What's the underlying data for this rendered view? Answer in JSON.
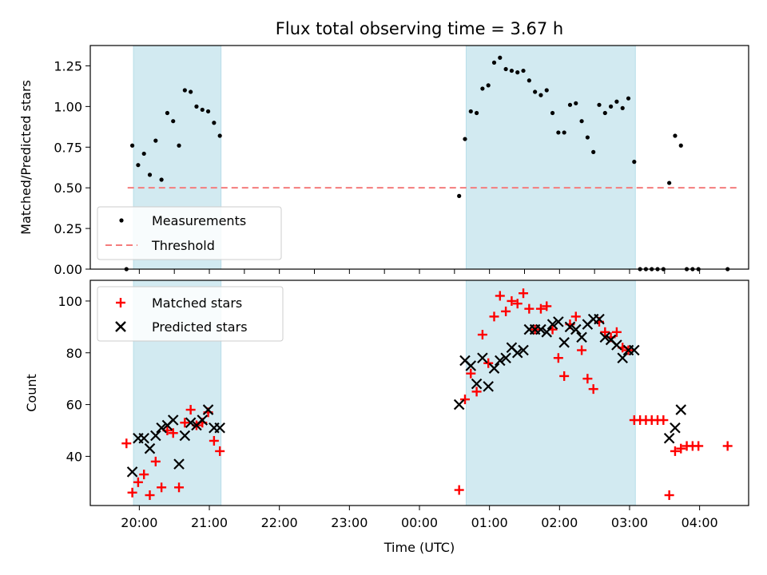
{
  "chart_data": [
    {
      "type": "scatter",
      "title": "Flux total observing time = 3.67 h",
      "ylabel": "Matched/Predicted stars",
      "xlabel": "",
      "ylim": [
        0,
        1.375
      ],
      "yticks": [
        "0.00",
        "0.25",
        "0.50",
        "0.75",
        "1.00",
        "1.25"
      ],
      "legend_position": "lower-left",
      "shaded_ranges": [
        [
          "19:55",
          "21:10"
        ],
        [
          "00:40",
          "03:05"
        ]
      ],
      "threshold": {
        "name": "Threshold",
        "value": 0.5,
        "x_range": [
          "19:50",
          "04:35"
        ],
        "color": "#f47c7c"
      },
      "series": [
        {
          "name": "Measurements",
          "color": "#000000",
          "x": [
            "19:49",
            "19:54",
            "19:59",
            "20:04",
            "20:09",
            "20:14",
            "20:19",
            "20:24",
            "20:29",
            "20:34",
            "20:39",
            "20:44",
            "20:49",
            "20:54",
            "20:59",
            "21:04",
            "21:09",
            "00:34",
            "00:39",
            "00:44",
            "00:49",
            "00:54",
            "00:59",
            "01:04",
            "01:09",
            "01:14",
            "01:19",
            "01:24",
            "01:29",
            "01:34",
            "01:39",
            "01:44",
            "01:49",
            "01:54",
            "01:59",
            "02:04",
            "02:09",
            "02:14",
            "02:19",
            "02:24",
            "02:29",
            "02:34",
            "02:39",
            "02:44",
            "02:49",
            "02:54",
            "02:59",
            "03:04",
            "03:09",
            "03:14",
            "03:19",
            "03:24",
            "03:29",
            "03:34",
            "03:39",
            "03:44",
            "03:49",
            "03:54",
            "03:59",
            "04:24"
          ],
          "y": [
            0.0,
            0.76,
            0.64,
            0.71,
            0.58,
            0.79,
            0.55,
            0.96,
            0.91,
            0.76,
            1.1,
            1.09,
            1.0,
            0.98,
            0.97,
            0.9,
            0.82,
            0.45,
            0.8,
            0.97,
            0.96,
            1.11,
            1.13,
            1.27,
            1.3,
            1.23,
            1.22,
            1.21,
            1.22,
            1.16,
            1.09,
            1.07,
            1.1,
            0.96,
            0.84,
            0.84,
            1.01,
            1.02,
            0.91,
            0.81,
            0.72,
            1.01,
            0.96,
            1.0,
            1.03,
            0.99,
            1.05,
            0.66,
            0.0,
            0.0,
            0.0,
            0.0,
            0.0,
            0.53,
            0.82,
            0.76,
            0.0,
            0.0,
            0.0,
            0.0
          ]
        }
      ]
    },
    {
      "type": "scatter",
      "title": "",
      "ylabel": "Count",
      "xlabel": "Time (UTC)",
      "ylim": [
        21,
        108
      ],
      "yticks": [
        40,
        60,
        80,
        100
      ],
      "x_range": [
        "19:18",
        "04:42"
      ],
      "xticks": [
        "20:00",
        "21:00",
        "22:00",
        "23:00",
        "00:00",
        "01:00",
        "02:00",
        "03:00",
        "04:00"
      ],
      "legend_position": "upper-left",
      "shaded_ranges": [
        [
          "19:55",
          "21:10"
        ],
        [
          "00:40",
          "03:05"
        ]
      ],
      "series": [
        {
          "name": "Matched stars",
          "color": "#ff0000",
          "marker": "plus",
          "x": [
            "19:49",
            "19:54",
            "19:59",
            "20:04",
            "20:09",
            "20:14",
            "20:19",
            "20:24",
            "20:29",
            "20:34",
            "20:39",
            "20:44",
            "20:49",
            "20:54",
            "20:59",
            "21:04",
            "21:09",
            "00:34",
            "00:39",
            "00:44",
            "00:49",
            "00:54",
            "00:59",
            "01:04",
            "01:09",
            "01:14",
            "01:19",
            "01:24",
            "01:29",
            "01:34",
            "01:39",
            "01:44",
            "01:49",
            "01:54",
            "01:59",
            "02:04",
            "02:09",
            "02:14",
            "02:19",
            "02:24",
            "02:29",
            "02:34",
            "02:39",
            "02:44",
            "02:49",
            "02:54",
            "02:59",
            "03:04",
            "03:09",
            "03:14",
            "03:19",
            "03:24",
            "03:29",
            "03:34",
            "03:39",
            "03:44",
            "03:49",
            "03:54",
            "03:59",
            "04:24"
          ],
          "y": [
            45,
            26,
            30,
            33,
            25,
            38,
            28,
            50,
            49,
            28,
            53,
            58,
            52,
            53,
            57,
            46,
            42,
            27,
            62,
            72,
            65,
            87,
            76,
            94,
            102,
            96,
            100,
            99,
            103,
            97,
            89,
            97,
            98,
            89,
            78,
            71,
            91,
            94,
            81,
            70,
            66,
            92,
            88,
            86,
            88,
            82,
            81,
            54,
            54,
            54,
            54,
            54,
            54,
            25,
            42,
            43,
            44,
            44,
            44,
            44
          ]
        },
        {
          "name": "Predicted stars",
          "color": "#000000",
          "marker": "x",
          "x": [
            "19:54",
            "19:59",
            "20:04",
            "20:09",
            "20:14",
            "20:19",
            "20:24",
            "20:29",
            "20:34",
            "20:39",
            "20:44",
            "20:49",
            "20:54",
            "20:59",
            "21:04",
            "21:09",
            "00:34",
            "00:39",
            "00:44",
            "00:49",
            "00:54",
            "00:59",
            "01:04",
            "01:09",
            "01:14",
            "01:19",
            "01:24",
            "01:29",
            "01:34",
            "01:39",
            "01:44",
            "01:49",
            "01:54",
            "01:59",
            "02:04",
            "02:09",
            "02:14",
            "02:19",
            "02:24",
            "02:29",
            "02:34",
            "02:39",
            "02:44",
            "02:49",
            "02:54",
            "02:59",
            "03:04",
            "03:34",
            "03:39",
            "03:44"
          ],
          "y": [
            34,
            47,
            47,
            43,
            48,
            51,
            52,
            54,
            37,
            48,
            53,
            52,
            54,
            58,
            51,
            51,
            60,
            77,
            75,
            68,
            78,
            67,
            74,
            77,
            78,
            82,
            80,
            81,
            89,
            89,
            89,
            88,
            91,
            92,
            84,
            90,
            89,
            86,
            91,
            93,
            93,
            86,
            85,
            83,
            78,
            81,
            81,
            47,
            51,
            58
          ]
        }
      ]
    }
  ]
}
